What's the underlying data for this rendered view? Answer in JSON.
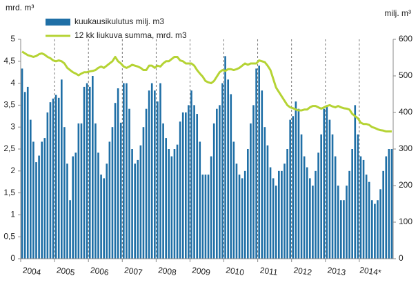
{
  "chart_data": {
    "type": "bar_line",
    "y_label": "mrd. m³",
    "y2_label": "milj. m³",
    "categories": [
      "2004",
      null,
      null,
      null,
      null,
      null,
      null,
      null,
      null,
      null,
      null,
      null,
      "2005",
      null,
      null,
      null,
      null,
      null,
      null,
      null,
      null,
      null,
      null,
      null,
      "2006",
      null,
      null,
      null,
      null,
      null,
      null,
      null,
      null,
      null,
      null,
      null,
      "2007",
      null,
      null,
      null,
      null,
      null,
      null,
      null,
      null,
      null,
      null,
      null,
      "2008",
      null,
      null,
      null,
      null,
      null,
      null,
      null,
      null,
      null,
      null,
      null,
      "2009",
      null,
      null,
      null,
      null,
      null,
      null,
      null,
      null,
      null,
      null,
      null,
      "2010",
      null,
      null,
      null,
      null,
      null,
      null,
      null,
      null,
      null,
      null,
      null,
      "2011",
      null,
      null,
      null,
      null,
      null,
      null,
      null,
      null,
      null,
      null,
      null,
      "2012",
      null,
      null,
      null,
      null,
      null,
      null,
      null,
      null,
      null,
      null,
      null,
      "2013",
      null,
      null,
      null,
      null,
      null,
      null,
      null,
      null,
      null,
      null,
      null,
      "2014*",
      null,
      null,
      null,
      null,
      null,
      null,
      null,
      null,
      null,
      null,
      null
    ],
    "series": [
      {
        "name": "kuukausikulutus milj. m3",
        "type": "bar",
        "axis": "y2",
        "color": "#1f6fa6",
        "values": [
          520,
          456,
          470,
          380,
          320,
          264,
          282,
          320,
          330,
          400,
          428,
          438,
          448,
          440,
          490,
          360,
          260,
          160,
          280,
          290,
          370,
          370,
          470,
          480,
          470,
          500,
          370,
          290,
          230,
          220,
          260,
          320,
          360,
          426,
          466,
          372,
          480,
          480,
          410,
          300,
          260,
          270,
          310,
          360,
          410,
          460,
          480,
          460,
          430,
          480,
          370,
          330,
          300,
          280,
          300,
          312,
          375,
          400,
          400,
          420,
          460,
          420,
          396,
          320,
          230,
          230,
          230,
          280,
          370,
          410,
          420,
          480,
          554,
          490,
          450,
          320,
          260,
          230,
          220,
          240,
          300,
          370,
          420,
          520,
          528,
          460,
          360,
          310,
          250,
          220,
          200,
          240,
          240,
          260,
          300,
          380,
          390,
          430,
          410,
          340,
          280,
          250,
          220,
          200,
          240,
          290,
          340,
          410,
          420,
          380,
          340,
          280,
          200,
          160,
          160,
          200,
          240,
          300,
          420,
          340,
          280,
          270,
          230,
          210,
          160,
          150,
          160,
          190,
          240,
          280,
          300,
          300
        ]
      },
      {
        "name": "12 kk liukuva summa, mrd. m3",
        "type": "line",
        "axis": "y",
        "color": "#b5d334",
        "values": [
          4.72,
          4.68,
          4.64,
          4.62,
          4.6,
          4.62,
          4.66,
          4.68,
          4.65,
          4.6,
          4.57,
          4.52,
          4.5,
          4.52,
          4.5,
          4.45,
          4.35,
          4.3,
          4.25,
          4.22,
          4.18,
          4.22,
          4.25,
          4.25,
          4.27,
          4.28,
          4.3,
          4.35,
          4.38,
          4.35,
          4.4,
          4.45,
          4.5,
          4.6,
          4.5,
          4.45,
          4.38,
          4.35,
          4.38,
          4.42,
          4.4,
          4.38,
          4.35,
          4.3,
          4.3,
          4.4,
          4.4,
          4.35,
          4.4,
          4.38,
          4.45,
          4.5,
          4.5,
          4.55,
          4.6,
          4.6,
          4.52,
          4.5,
          4.45,
          4.45,
          4.45,
          4.4,
          4.3,
          4.22,
          4.15,
          4.05,
          4.02,
          4.0,
          4.05,
          4.15,
          4.25,
          4.3,
          4.28,
          4.32,
          4.32,
          4.3,
          4.32,
          4.35,
          4.4,
          4.45,
          4.42,
          4.45,
          4.45,
          4.45,
          4.52,
          4.5,
          4.48,
          4.4,
          4.3,
          4.1,
          3.9,
          3.8,
          3.7,
          3.6,
          3.5,
          3.45,
          3.43,
          3.4,
          3.38,
          3.38,
          3.4,
          3.4,
          3.45,
          3.48,
          3.48,
          3.45,
          3.42,
          3.45,
          3.48,
          3.5,
          3.47,
          3.45,
          3.48,
          3.45,
          3.43,
          3.42,
          3.4,
          3.3,
          3.25,
          3.2,
          3.1,
          3.07,
          3.07,
          3.05,
          3.0,
          2.98,
          2.95,
          2.93,
          2.92,
          2.9,
          2.9,
          2.9
        ]
      }
    ],
    "ylim": [
      0,
      5
    ],
    "yticks": [
      0,
      {
        "value": 0.5,
        "label": "0,5"
      },
      1,
      {
        "value": 1.5,
        "label": "1,5"
      },
      2,
      {
        "value": 2.5,
        "label": "2,5"
      },
      3,
      {
        "value": 3.5,
        "label": "3,5"
      },
      4,
      {
        "value": 4.5,
        "label": "4,5"
      },
      5
    ],
    "y2lim": [
      0,
      600
    ],
    "y2ticks": [
      0,
      100,
      200,
      300,
      400,
      500,
      600
    ],
    "legend": "top-left"
  }
}
